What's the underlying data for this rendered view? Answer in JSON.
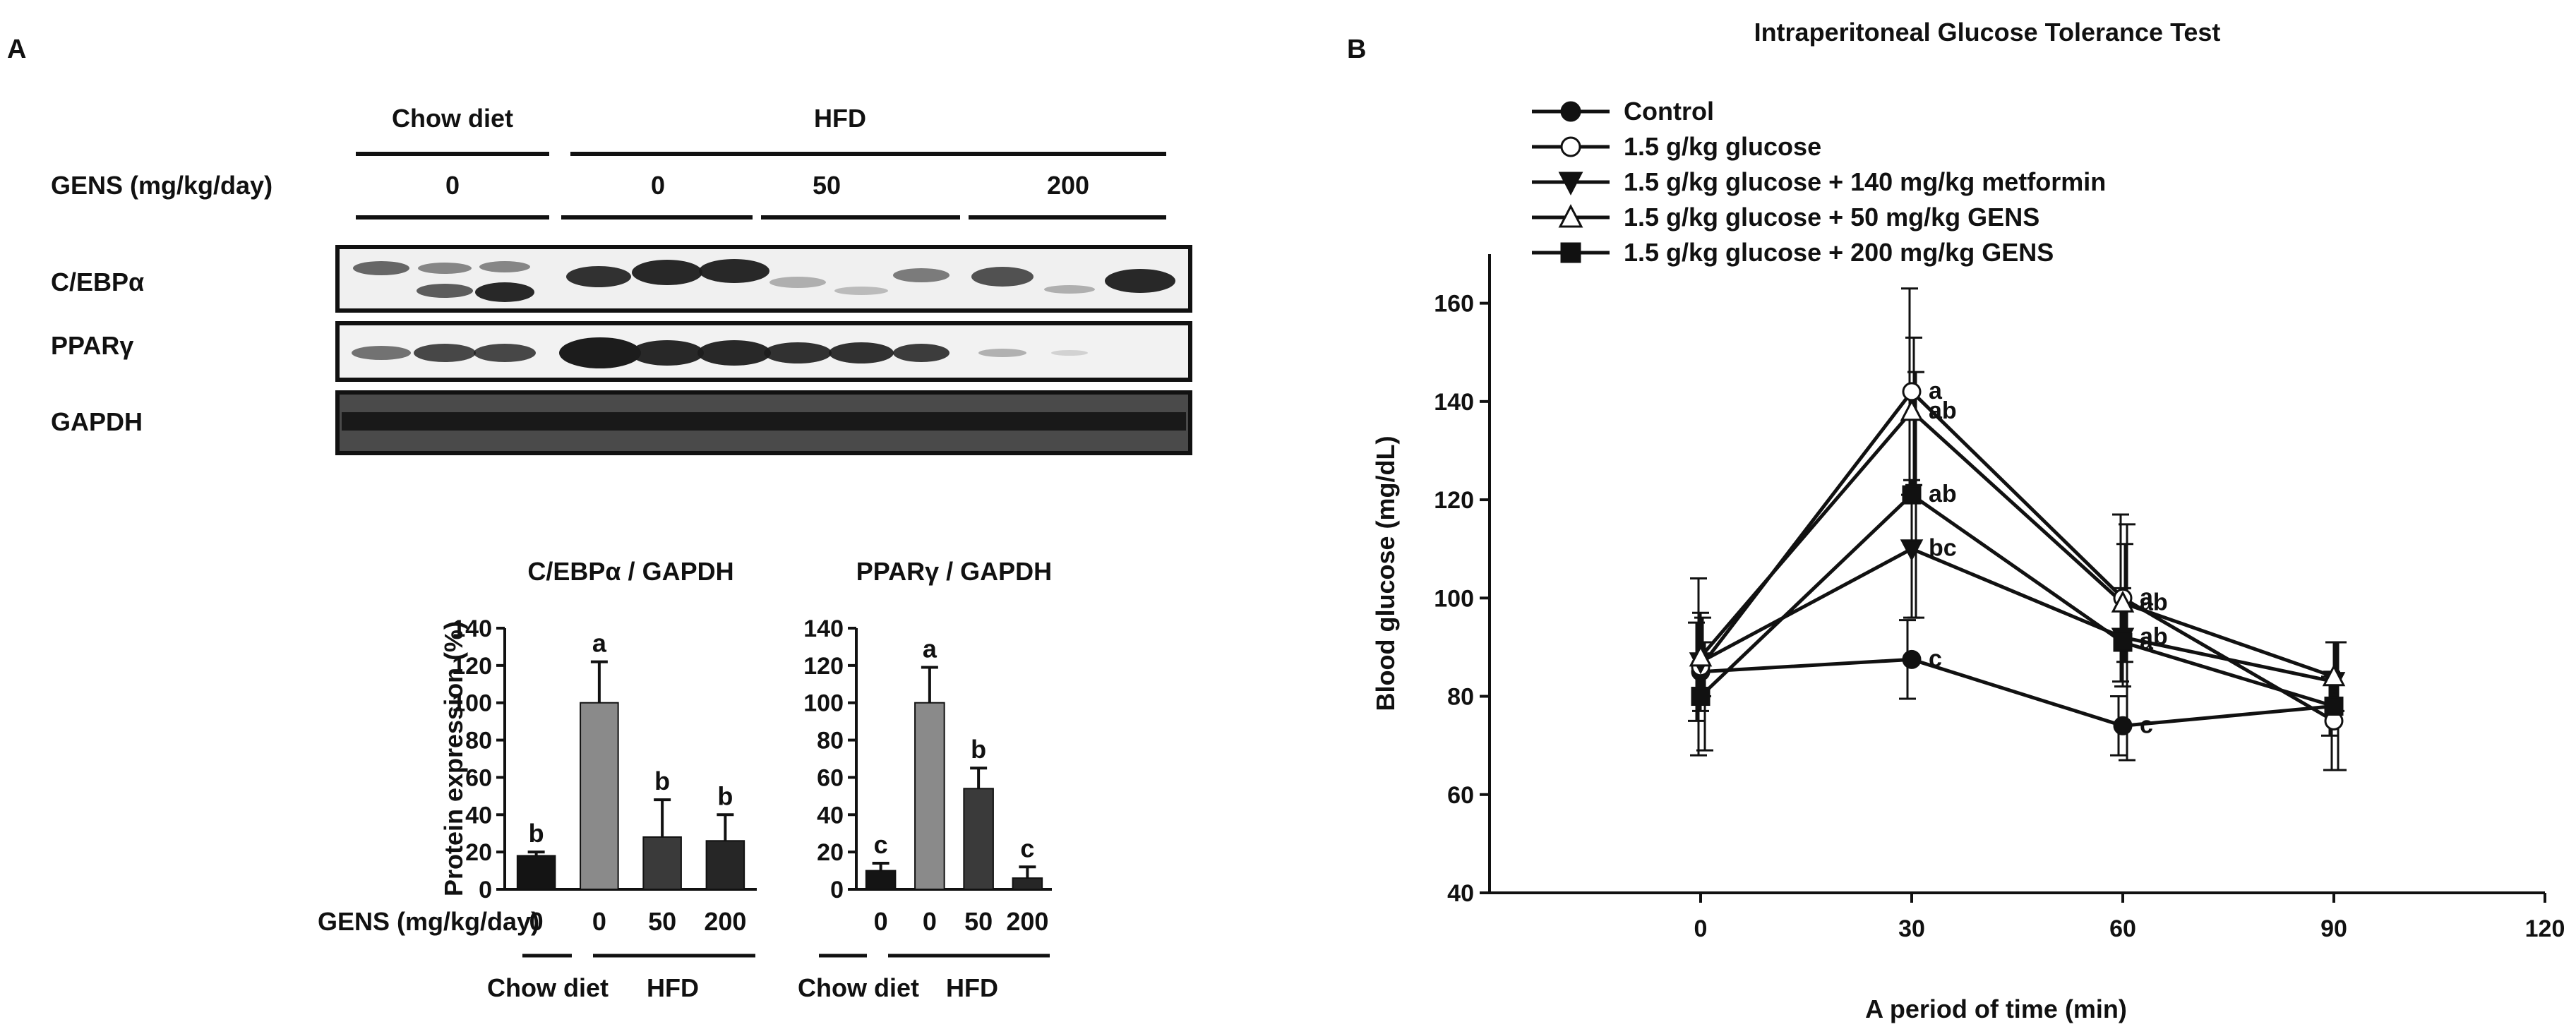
{
  "panel_a": {
    "panel_letter": "A",
    "header": {
      "chow_label": "Chow diet",
      "hfd_label": "HFD",
      "gens_row_label": "GENS (mg/kg/day)",
      "doses": [
        "0",
        "0",
        "50",
        "200"
      ]
    },
    "blot_labels": [
      "C/EBPα",
      "PPARγ",
      "GAPDH"
    ],
    "bottom_axis": {
      "gens_label": "GENS (mg/kg/day)",
      "group_chow": "Chow diet",
      "group_hfd": "HFD"
    }
  },
  "panel_b": {
    "panel_letter": "B"
  },
  "chart_data": [
    {
      "type": "bar",
      "title": "C/EBPα / GAPDH",
      "ylabel": "Protein expression (%)",
      "categories": [
        "0",
        "0",
        "50",
        "200"
      ],
      "values": [
        18,
        100,
        28,
        26
      ],
      "errors": [
        2,
        22,
        20,
        14
      ],
      "letters": [
        "b",
        "a",
        "b",
        "b"
      ],
      "colors": [
        "#141414",
        "#8a8a8a",
        "#3a3a3a",
        "#262626"
      ],
      "ylim": [
        0,
        140
      ],
      "yticks": [
        "0",
        "20",
        "40",
        "60",
        "80",
        "100",
        "120",
        "140"
      ]
    },
    {
      "type": "bar",
      "title": "PPARγ / GAPDH",
      "ylabel": "",
      "categories": [
        "0",
        "0",
        "50",
        "200"
      ],
      "values": [
        10,
        100,
        54,
        6
      ],
      "errors": [
        4,
        19,
        11,
        6
      ],
      "letters": [
        "c",
        "a",
        "b",
        "c"
      ],
      "colors": [
        "#141414",
        "#8a8a8a",
        "#3a3a3a",
        "#262626"
      ],
      "ylim": [
        0,
        140
      ],
      "yticks": [
        "0",
        "20",
        "40",
        "60",
        "80",
        "100",
        "120",
        "140"
      ]
    },
    {
      "type": "line",
      "title": "Intraperitoneal Glucose Tolerance Test",
      "xlabel": "A period of time (min)",
      "ylabel": "Blood glucose (mg/dL)",
      "x": [
        0,
        30,
        60,
        90
      ],
      "xlim": [
        -30,
        120
      ],
      "ylim": [
        40,
        170
      ],
      "xticks": [
        "0",
        "30",
        "60",
        "90",
        "120"
      ],
      "yticks": [
        "40",
        "60",
        "80",
        "100",
        "120",
        "140",
        "160"
      ],
      "legend_position": "top-left",
      "series": [
        {
          "name": "Control",
          "marker": "filled-circle",
          "values": [
            85,
            87.5,
            74,
            78
          ],
          "errors": [
            10,
            8,
            6,
            6
          ],
          "letters": [
            "",
            "c",
            "c",
            ""
          ]
        },
        {
          "name": "1.5 g/kg glucose",
          "marker": "open-circle",
          "values": [
            86,
            142,
            100,
            75
          ],
          "errors": [
            18,
            21,
            17,
            10
          ],
          "letters": [
            "",
            "a",
            "a",
            ""
          ]
        },
        {
          "name": "1.5 g/kg glucose + 140 mg/kg metformin",
          "marker": "filled-down-triangle",
          "values": [
            87,
            110,
            92,
            83
          ],
          "errors": [
            10,
            14,
            10,
            8
          ],
          "letters": [
            "",
            "bc",
            "ab",
            ""
          ]
        },
        {
          "name": "1.5 g/kg glucose + 50 mg/kg GENS",
          "marker": "open-up-triangle",
          "values": [
            88,
            138,
            99,
            84
          ],
          "errors": [
            8,
            15,
            12,
            7
          ],
          "letters": [
            "",
            "ab",
            "ab",
            ""
          ]
        },
        {
          "name": "1.5 g/kg glucose + 200 mg/kg GENS",
          "marker": "filled-square",
          "values": [
            80,
            121,
            91,
            78
          ],
          "errors": [
            11,
            25,
            24,
            13
          ],
          "letters": [
            "",
            "ab",
            "a",
            ""
          ]
        }
      ]
    }
  ]
}
